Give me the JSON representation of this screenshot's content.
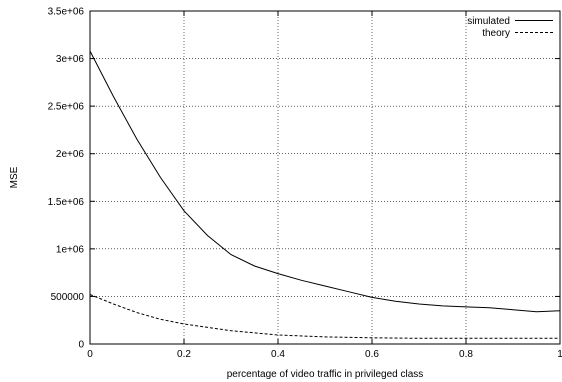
{
  "chart_data": {
    "type": "line",
    "title": "",
    "xlabel": "percentage of video traffic in privileged class",
    "ylabel": "MSE",
    "xlim": [
      0,
      1
    ],
    "ylim": [
      0,
      3500000
    ],
    "grid": true,
    "legend_position": "top-right",
    "x_ticks": [
      0,
      0.2,
      0.4,
      0.6,
      0.8,
      1
    ],
    "x_tick_labels": [
      "0",
      "0.2",
      "0.4",
      "0.6",
      "0.8",
      "1"
    ],
    "y_ticks": [
      0,
      500000,
      1000000,
      1500000,
      2000000,
      2500000,
      3000000,
      3500000
    ],
    "y_tick_labels": [
      "0",
      "500000",
      "1e+06",
      "1.5e+06",
      "2e+06",
      "2.5e+06",
      "3e+06",
      "3.5e+06"
    ],
    "series": [
      {
        "name": "simulated",
        "style": "solid",
        "color": "#000000",
        "x": [
          0,
          0.05,
          0.1,
          0.15,
          0.2,
          0.25,
          0.3,
          0.35,
          0.4,
          0.45,
          0.5,
          0.55,
          0.6,
          0.65,
          0.7,
          0.75,
          0.8,
          0.85,
          0.9,
          0.95,
          1
        ],
        "y": [
          3080000,
          2600000,
          2150000,
          1750000,
          1400000,
          1140000,
          940000,
          820000,
          740000,
          670000,
          610000,
          550000,
          490000,
          450000,
          420000,
          400000,
          390000,
          380000,
          360000,
          340000,
          350000
        ]
      },
      {
        "name": "theory",
        "style": "dashed",
        "color": "#000000",
        "x": [
          0,
          0.05,
          0.1,
          0.15,
          0.2,
          0.3,
          0.4,
          0.5,
          0.6,
          0.7,
          0.8,
          0.9,
          1
        ],
        "y": [
          520000,
          420000,
          330000,
          260000,
          210000,
          140000,
          95000,
          75000,
          65000,
          60000,
          60000,
          60000,
          60000
        ]
      }
    ]
  }
}
